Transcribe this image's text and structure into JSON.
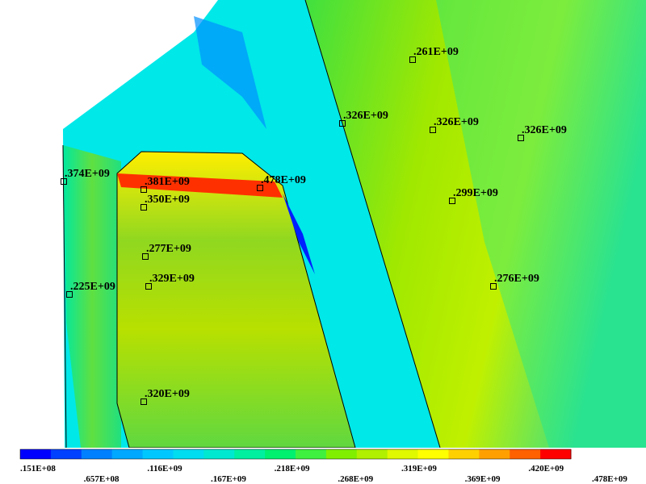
{
  "probes": [
    {
      "label": ".374E+09"
    },
    {
      "label": ".381E+09"
    },
    {
      "label": ".478E+09"
    },
    {
      "label": ".350E+09"
    },
    {
      "label": ".277E+09"
    },
    {
      "label": ".225E+09"
    },
    {
      "label": ".329E+09"
    },
    {
      "label": ".320E+09"
    },
    {
      "label": ".261E+09"
    },
    {
      "label": ".326E+09"
    },
    {
      "label": ".326E+09"
    },
    {
      "label": ".326E+09"
    },
    {
      "label": ".299E+09"
    },
    {
      "label": ".276E+09"
    }
  ],
  "legend": {
    "labels": [
      ".151E+08",
      ".657E+08",
      ".116E+09",
      ".167E+09",
      ".218E+09",
      ".268E+09",
      ".319E+09",
      ".369E+09",
      ".420E+09",
      ".478E+09"
    ]
  }
}
